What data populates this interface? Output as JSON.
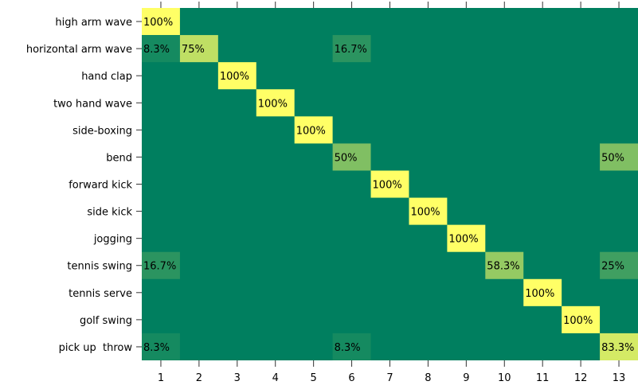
{
  "chart_data": {
    "type": "heatmap",
    "title": "",
    "xlabel": "",
    "ylabel": "",
    "row_labels": [
      "high arm wave",
      "horizontal arm wave",
      "hand clap",
      "two hand wave",
      "side-boxing",
      "bend",
      "forward kick",
      "side kick",
      "jogging",
      "tennis swing",
      "tennis serve",
      "golf swing",
      "pick up  throw"
    ],
    "col_labels": [
      "1",
      "2",
      "3",
      "4",
      "5",
      "6",
      "7",
      "8",
      "9",
      "10",
      "11",
      "12",
      "13"
    ],
    "values": [
      [
        100,
        0,
        0,
        0,
        0,
        0,
        0,
        0,
        0,
        0,
        0,
        0,
        0
      ],
      [
        8.3,
        75,
        0,
        0,
        0,
        16.7,
        0,
        0,
        0,
        0,
        0,
        0,
        0
      ],
      [
        0,
        0,
        100,
        0,
        0,
        0,
        0,
        0,
        0,
        0,
        0,
        0,
        0
      ],
      [
        0,
        0,
        0,
        100,
        0,
        0,
        0,
        0,
        0,
        0,
        0,
        0,
        0
      ],
      [
        0,
        0,
        0,
        0,
        100,
        0,
        0,
        0,
        0,
        0,
        0,
        0,
        0
      ],
      [
        0,
        0,
        0,
        0,
        0,
        50,
        0,
        0,
        0,
        0,
        0,
        0,
        50
      ],
      [
        0,
        0,
        0,
        0,
        0,
        0,
        100,
        0,
        0,
        0,
        0,
        0,
        0
      ],
      [
        0,
        0,
        0,
        0,
        0,
        0,
        0,
        100,
        0,
        0,
        0,
        0,
        0
      ],
      [
        0,
        0,
        0,
        0,
        0,
        0,
        0,
        0,
        100,
        0,
        0,
        0,
        0
      ],
      [
        16.7,
        0,
        0,
        0,
        0,
        0,
        0,
        0,
        0,
        58.3,
        0,
        0,
        25
      ],
      [
        0,
        0,
        0,
        0,
        0,
        0,
        0,
        0,
        0,
        0,
        100,
        0,
        0
      ],
      [
        0,
        0,
        0,
        0,
        0,
        0,
        0,
        0,
        0,
        0,
        0,
        100,
        0
      ],
      [
        8.3,
        0,
        0,
        0,
        0,
        8.3,
        0,
        0,
        0,
        0,
        0,
        0,
        83.3
      ]
    ],
    "value_suffix": "%",
    "vmin": 0,
    "vmax": 100,
    "colormap": [
      "#007f5f",
      "#ffff66"
    ],
    "grid": false,
    "legend": "none"
  }
}
